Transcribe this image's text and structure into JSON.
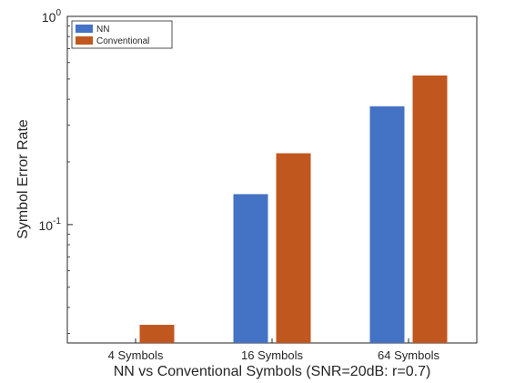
{
  "chart_data": {
    "type": "bar",
    "title": "",
    "xlabel": "NN vs Conventional Symbols (SNR=20dB: r=0.7)",
    "ylabel": "Symbol Error Rate",
    "yscale": "log",
    "ylim": [
      0.027,
      1
    ],
    "ytick_labels": [
      {
        "base": "10",
        "exp": "-1",
        "value": 0.1
      },
      {
        "base": "10",
        "exp": "0",
        "value": 1
      }
    ],
    "categories": [
      "4 Symbols",
      "16 Symbols",
      "64 Symbols"
    ],
    "series": [
      {
        "name": "NN",
        "color": "#4472C4",
        "values": [
          null,
          0.14,
          0.37
        ]
      },
      {
        "name": "Conventional",
        "color": "#C0571E",
        "values": [
          0.033,
          0.22,
          0.52
        ]
      }
    ],
    "grid": false,
    "legend_position": "top-left"
  }
}
